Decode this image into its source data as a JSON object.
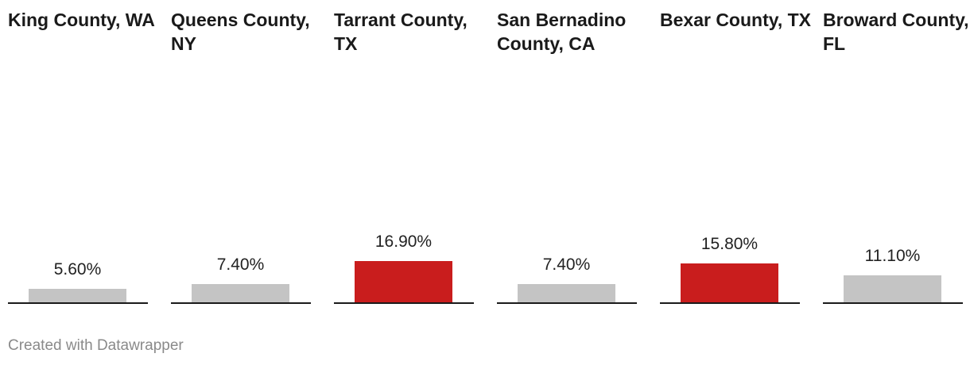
{
  "chart_data": {
    "type": "bar",
    "layout": "small-multiples",
    "title": "",
    "xlabel": "",
    "ylabel": "",
    "ylim": [
      0,
      100
    ],
    "categories": [
      "King County, WA",
      "Queens County, NY",
      "Tarrant County, TX",
      "San Bernadino County, CA",
      "Bexar County, TX",
      "Broward County, FL"
    ],
    "values": [
      5.6,
      7.4,
      16.9,
      7.4,
      15.8,
      11.1
    ],
    "value_labels": [
      "5.60%",
      "7.40%",
      "16.90%",
      "7.40%",
      "15.80%",
      "11.10%"
    ],
    "highlighted": [
      false,
      false,
      true,
      false,
      true,
      false
    ],
    "grid": false,
    "legend": "none"
  },
  "colors": {
    "highlight": "#c91d1d",
    "default": "#c4c4c4",
    "baseline": "#1a1a1a",
    "credit_text": "#8a8a8a"
  },
  "footer": {
    "credit": "Created with Datawrapper"
  }
}
